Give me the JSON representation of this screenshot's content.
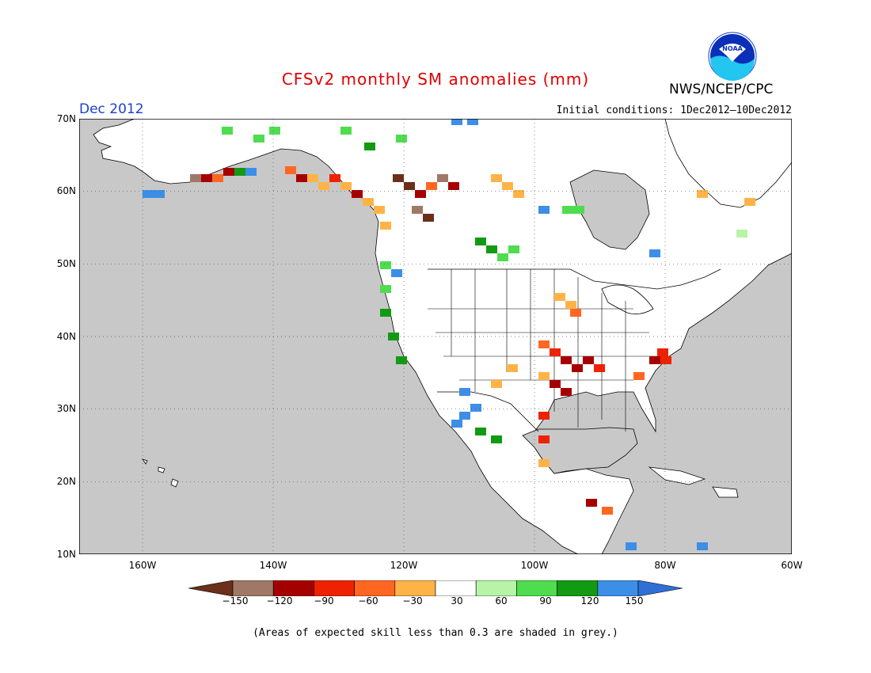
{
  "title": "CFSv2 monthly SM anomalies (mm)",
  "month_label": "Dec 2012",
  "initial_conditions": "Initial conditions: 1Dec2012–10Dec2012",
  "agency": "NWS/NCEP/CPC",
  "logo_text": "NOAA",
  "footnote": "(Areas of expected skill less than 0.3 are shaded in grey.)",
  "lat_labels": [
    "70N",
    "60N",
    "50N",
    "40N",
    "30N",
    "20N",
    "10N"
  ],
  "lon_labels": [
    "160W",
    "140W",
    "120W",
    "100W",
    "80W",
    "60W"
  ],
  "colorbar": {
    "labels": [
      "−150",
      "−120",
      "−90",
      "−60",
      "−30",
      "30",
      "60",
      "90",
      "120",
      "150"
    ],
    "colors": [
      "#6b2f1a",
      "#a07868",
      "#a50000",
      "#ee2200",
      "#ff6622",
      "#ffb347",
      "#ffffff",
      "#b8f4a8",
      "#4fdc4f",
      "#129a12",
      "#3d8ee6",
      "#2f6fd6"
    ]
  },
  "colors": {
    "ocean_grey": "#c8c8c8",
    "land_white": "#ffffff",
    "title_red": "#e00000",
    "month_blue": "#1a3fd0"
  }
}
